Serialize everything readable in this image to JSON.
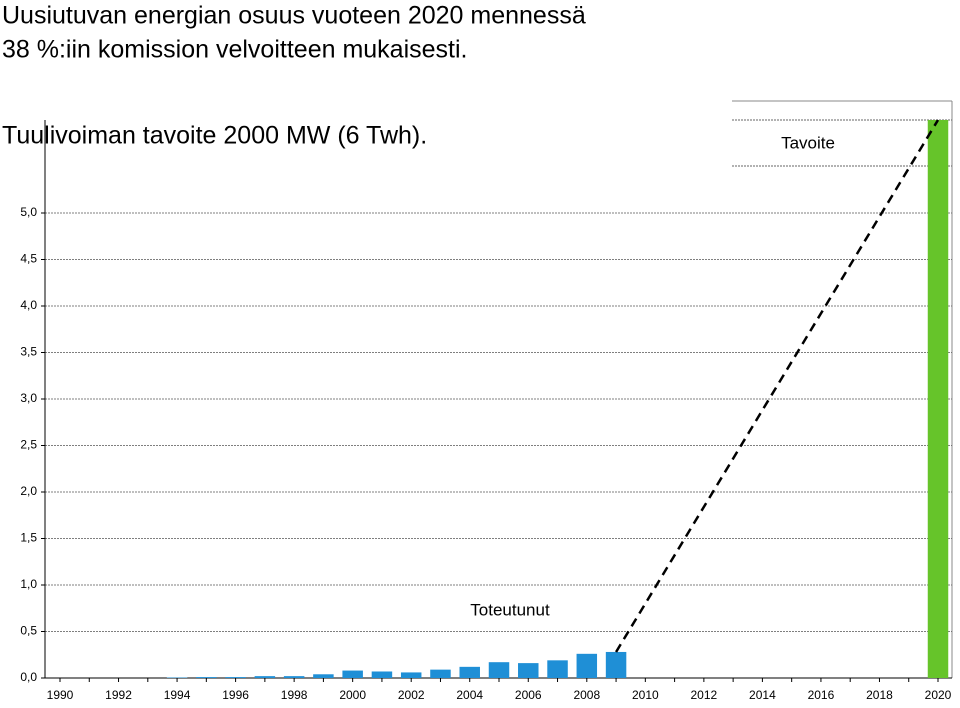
{
  "chart_data": {
    "type": "bar",
    "title": "Uusiutuvan energian osuus vuoteen 2020 mennessä",
    "subtitle": "38 %:iin komission velvoitteen mukaisesti.",
    "annotation": "Tuulivoiman tavoite 2000 MW (6 Twh).",
    "categories": [
      "1990",
      null,
      "1992",
      null,
      "1994",
      null,
      "1996",
      null,
      "1998",
      null,
      "2000",
      null,
      "2002",
      null,
      "2004",
      null,
      "2006",
      null,
      "2008",
      null,
      "2010",
      null,
      "2012",
      null,
      "2014",
      null,
      "2016",
      null,
      "2018",
      null,
      "2020"
    ],
    "series": [
      {
        "name": "Toteutunut",
        "color": "#1f8fd6",
        "values": [
          0,
          0,
          0,
          0,
          0.005,
          0.01,
          0.01,
          0.02,
          0.02,
          0.04,
          0.08,
          0.07,
          0.06,
          0.09,
          0.12,
          0.17,
          0.16,
          0.19,
          0.26,
          0.28,
          null,
          null,
          null,
          null,
          null,
          null,
          null,
          null,
          null,
          null,
          null
        ]
      },
      {
        "name": "Tavoite",
        "color": "#66c42a",
        "values": [
          null,
          null,
          null,
          null,
          null,
          null,
          null,
          null,
          null,
          null,
          null,
          null,
          null,
          null,
          null,
          null,
          null,
          null,
          null,
          null,
          null,
          null,
          null,
          null,
          null,
          null,
          null,
          null,
          null,
          null,
          6.0
        ]
      }
    ],
    "ylim": [
      0,
      6
    ],
    "yticks": [
      {
        "value": 0,
        "label": "0,0"
      },
      {
        "value": 0.5,
        "label": "0,5"
      },
      {
        "value": 1,
        "label": "1,0"
      },
      {
        "value": 1.5,
        "label": "1,5"
      },
      {
        "value": 2,
        "label": "2,0"
      },
      {
        "value": 2.5,
        "label": "2,5"
      },
      {
        "value": 3,
        "label": "3,0"
      },
      {
        "value": 3.5,
        "label": "3,5"
      },
      {
        "value": 4,
        "label": "4,0"
      },
      {
        "value": 4.5,
        "label": "4,5"
      },
      {
        "value": 5,
        "label": "5,0"
      }
    ],
    "grid": true
  }
}
